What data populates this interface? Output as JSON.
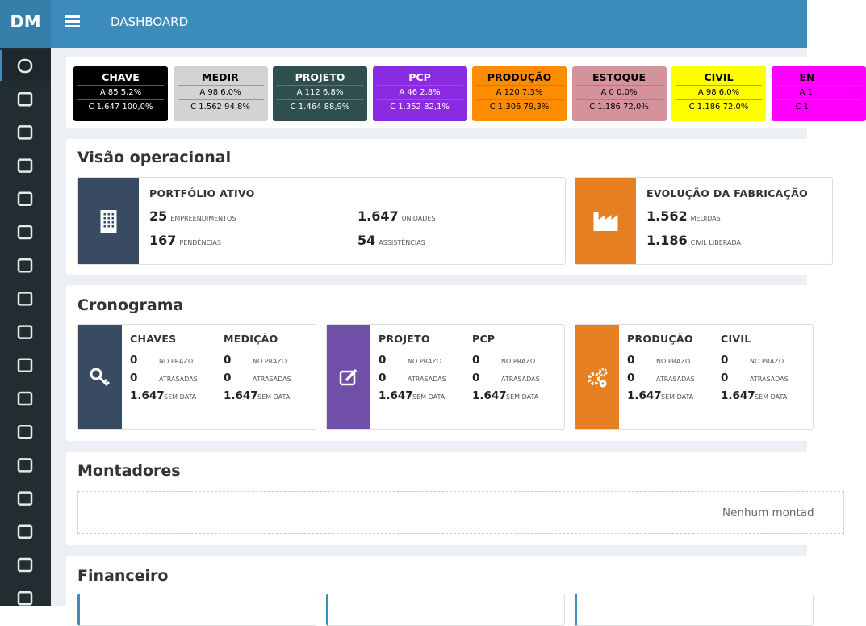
{
  "header": {
    "logo": "DM",
    "title": "DASHBOARD"
  },
  "status_cards": [
    {
      "title": "CHAVE",
      "a": "A 85 5,2%",
      "c": "C 1.647 100,0%",
      "color": "#000000",
      "text_color": "#ffffff"
    },
    {
      "title": "MEDIR",
      "a": "A 98 6,0%",
      "c": "C 1.562 94,8%",
      "color": "#d3d3d3",
      "text_color": "#000000"
    },
    {
      "title": "PROJETO",
      "a": "A 112 6,8%",
      "c": "C 1.464 88,9%",
      "color": "#2f4f4f",
      "text_color": "#ffffff"
    },
    {
      "title": "PCP",
      "a": "A 46 2,8%",
      "c": "C 1.352 82,1%",
      "color": "#8a2be2",
      "text_color": "#ffffff"
    },
    {
      "title": "PRODUÇÃO",
      "a": "A 120 7,3%",
      "c": "C 1.306 79,3%",
      "color": "#ff8c00",
      "text_color": "#000000"
    },
    {
      "title": "ESTOQUE",
      "a": "A 0 0,0%",
      "c": "C 1.186 72,0%",
      "color": "#d4939b",
      "text_color": "#000000"
    },
    {
      "title": "CIVIL",
      "a": "A 98 6,0%",
      "c": "C 1.186 72,0%",
      "color": "#ffff00",
      "text_color": "#000000"
    },
    {
      "title": "EN",
      "a": "A 1",
      "c": "C 1",
      "color": "#ff00ff",
      "text_color": "#000000"
    }
  ],
  "visao": {
    "title": "Visão operacional",
    "boxes": [
      {
        "title": "PORTFÓLIO ATIVO",
        "color": "#394b63",
        "stats": [
          {
            "value": "25",
            "label": "EMPREENDIMENTOS"
          },
          {
            "value": "167",
            "label": "PENDÊNCIAS"
          },
          {
            "value": "1.647",
            "label": "UNIDADES"
          },
          {
            "value": "54",
            "label": "ASSISTÊNCIAS"
          }
        ]
      },
      {
        "title": "EVOLUÇÃO DA FABRICAÇÃO",
        "color": "#e67e22",
        "stats": [
          {
            "value": "1.562",
            "label": "MEDIDAS"
          },
          {
            "value": "1.186",
            "label": "CIVIL LIBERADA"
          }
        ]
      }
    ]
  },
  "cronograma": {
    "title": "Cronograma",
    "boxes": [
      {
        "color": "#394b63",
        "columns": [
          {
            "title": "CHAVES",
            "rows": [
              {
                "value": "0",
                "label": "NO PRAZO"
              },
              {
                "value": "0",
                "label": "ATRASADAS"
              },
              {
                "value": "1.647",
                "label": "SEM DATA"
              }
            ]
          },
          {
            "title": "MEDIÇÃO",
            "rows": [
              {
                "value": "0",
                "label": "NO PRAZO"
              },
              {
                "value": "0",
                "label": "ATRASADAS"
              },
              {
                "value": "1.647",
                "label": "SEM DATA"
              }
            ]
          }
        ]
      },
      {
        "color": "#6f4fa8",
        "columns": [
          {
            "title": "PROJETO",
            "rows": [
              {
                "value": "0",
                "label": "NO PRAZO"
              },
              {
                "value": "0",
                "label": "ATRASADAS"
              },
              {
                "value": "1.647",
                "label": "SEM DATA"
              }
            ]
          },
          {
            "title": "PCP",
            "rows": [
              {
                "value": "0",
                "label": "NO PRAZO"
              },
              {
                "value": "0",
                "label": "ATRASADAS"
              },
              {
                "value": "1.647",
                "label": "SEM DATA"
              }
            ]
          }
        ]
      },
      {
        "color": "#e67e22",
        "columns": [
          {
            "title": "PRODUÇÃO",
            "rows": [
              {
                "value": "0",
                "label": "NO PRAZO"
              },
              {
                "value": "0",
                "label": "ATRASADAS"
              },
              {
                "value": "1.647",
                "label": "SEM DATA"
              }
            ]
          },
          {
            "title": "CIVIL",
            "rows": [
              {
                "value": "0",
                "label": "NO PRAZO"
              },
              {
                "value": "0",
                "label": "ATRASADAS"
              },
              {
                "value": "1.647",
                "label": "SEM DATA"
              }
            ]
          }
        ]
      }
    ]
  },
  "montadores": {
    "title": "Montadores",
    "empty": "Nenhum montad"
  },
  "financeiro": {
    "title": "Financeiro"
  }
}
